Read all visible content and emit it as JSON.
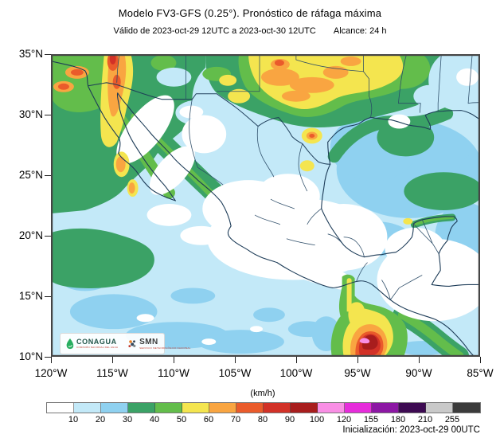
{
  "header": {
    "title": "Modelo FV3-GFS (0.25°). Pronóstico de ráfaga máxima",
    "validity": "Válido de 2023-oct-29 12UTC a 2023-oct-30 12UTC",
    "reach": "Alcance: 24 h"
  },
  "map": {
    "lat_ticks": [
      "35°N",
      "30°N",
      "25°N",
      "20°N",
      "15°N",
      "10°N"
    ],
    "lon_ticks": [
      "120°W",
      "115°W",
      "110°W",
      "105°W",
      "100°W",
      "95°W",
      "90°W",
      "85°W"
    ]
  },
  "legend": {
    "unit": "(km/h)",
    "ticks": [
      "10",
      "20",
      "30",
      "40",
      "50",
      "60",
      "70",
      "80",
      "90",
      "100",
      "120",
      "155",
      "180",
      "210",
      "255"
    ],
    "colors": [
      "#FFFFFF",
      "#C3E9F8",
      "#8FD1F0",
      "#3BA266",
      "#63BD4B",
      "#F4E54F",
      "#F9A541",
      "#EA5B2B",
      "#D23127",
      "#A81D1D",
      "#F98FE5",
      "#E62CDB",
      "#8C17A4",
      "#3D0A52",
      "#C9C9C9",
      "#3B3B3B"
    ]
  },
  "footer": {
    "initialization": "Inicialización: 2023-oct-29 00UTC"
  },
  "logos": {
    "conagua": "CONAGUA",
    "conagua_sub": "COMISIÓN NACIONAL DEL AGUA",
    "smn": "SMN",
    "smn_sub": "SERVICIO METEOROLÓGICO NACIONAL"
  }
}
